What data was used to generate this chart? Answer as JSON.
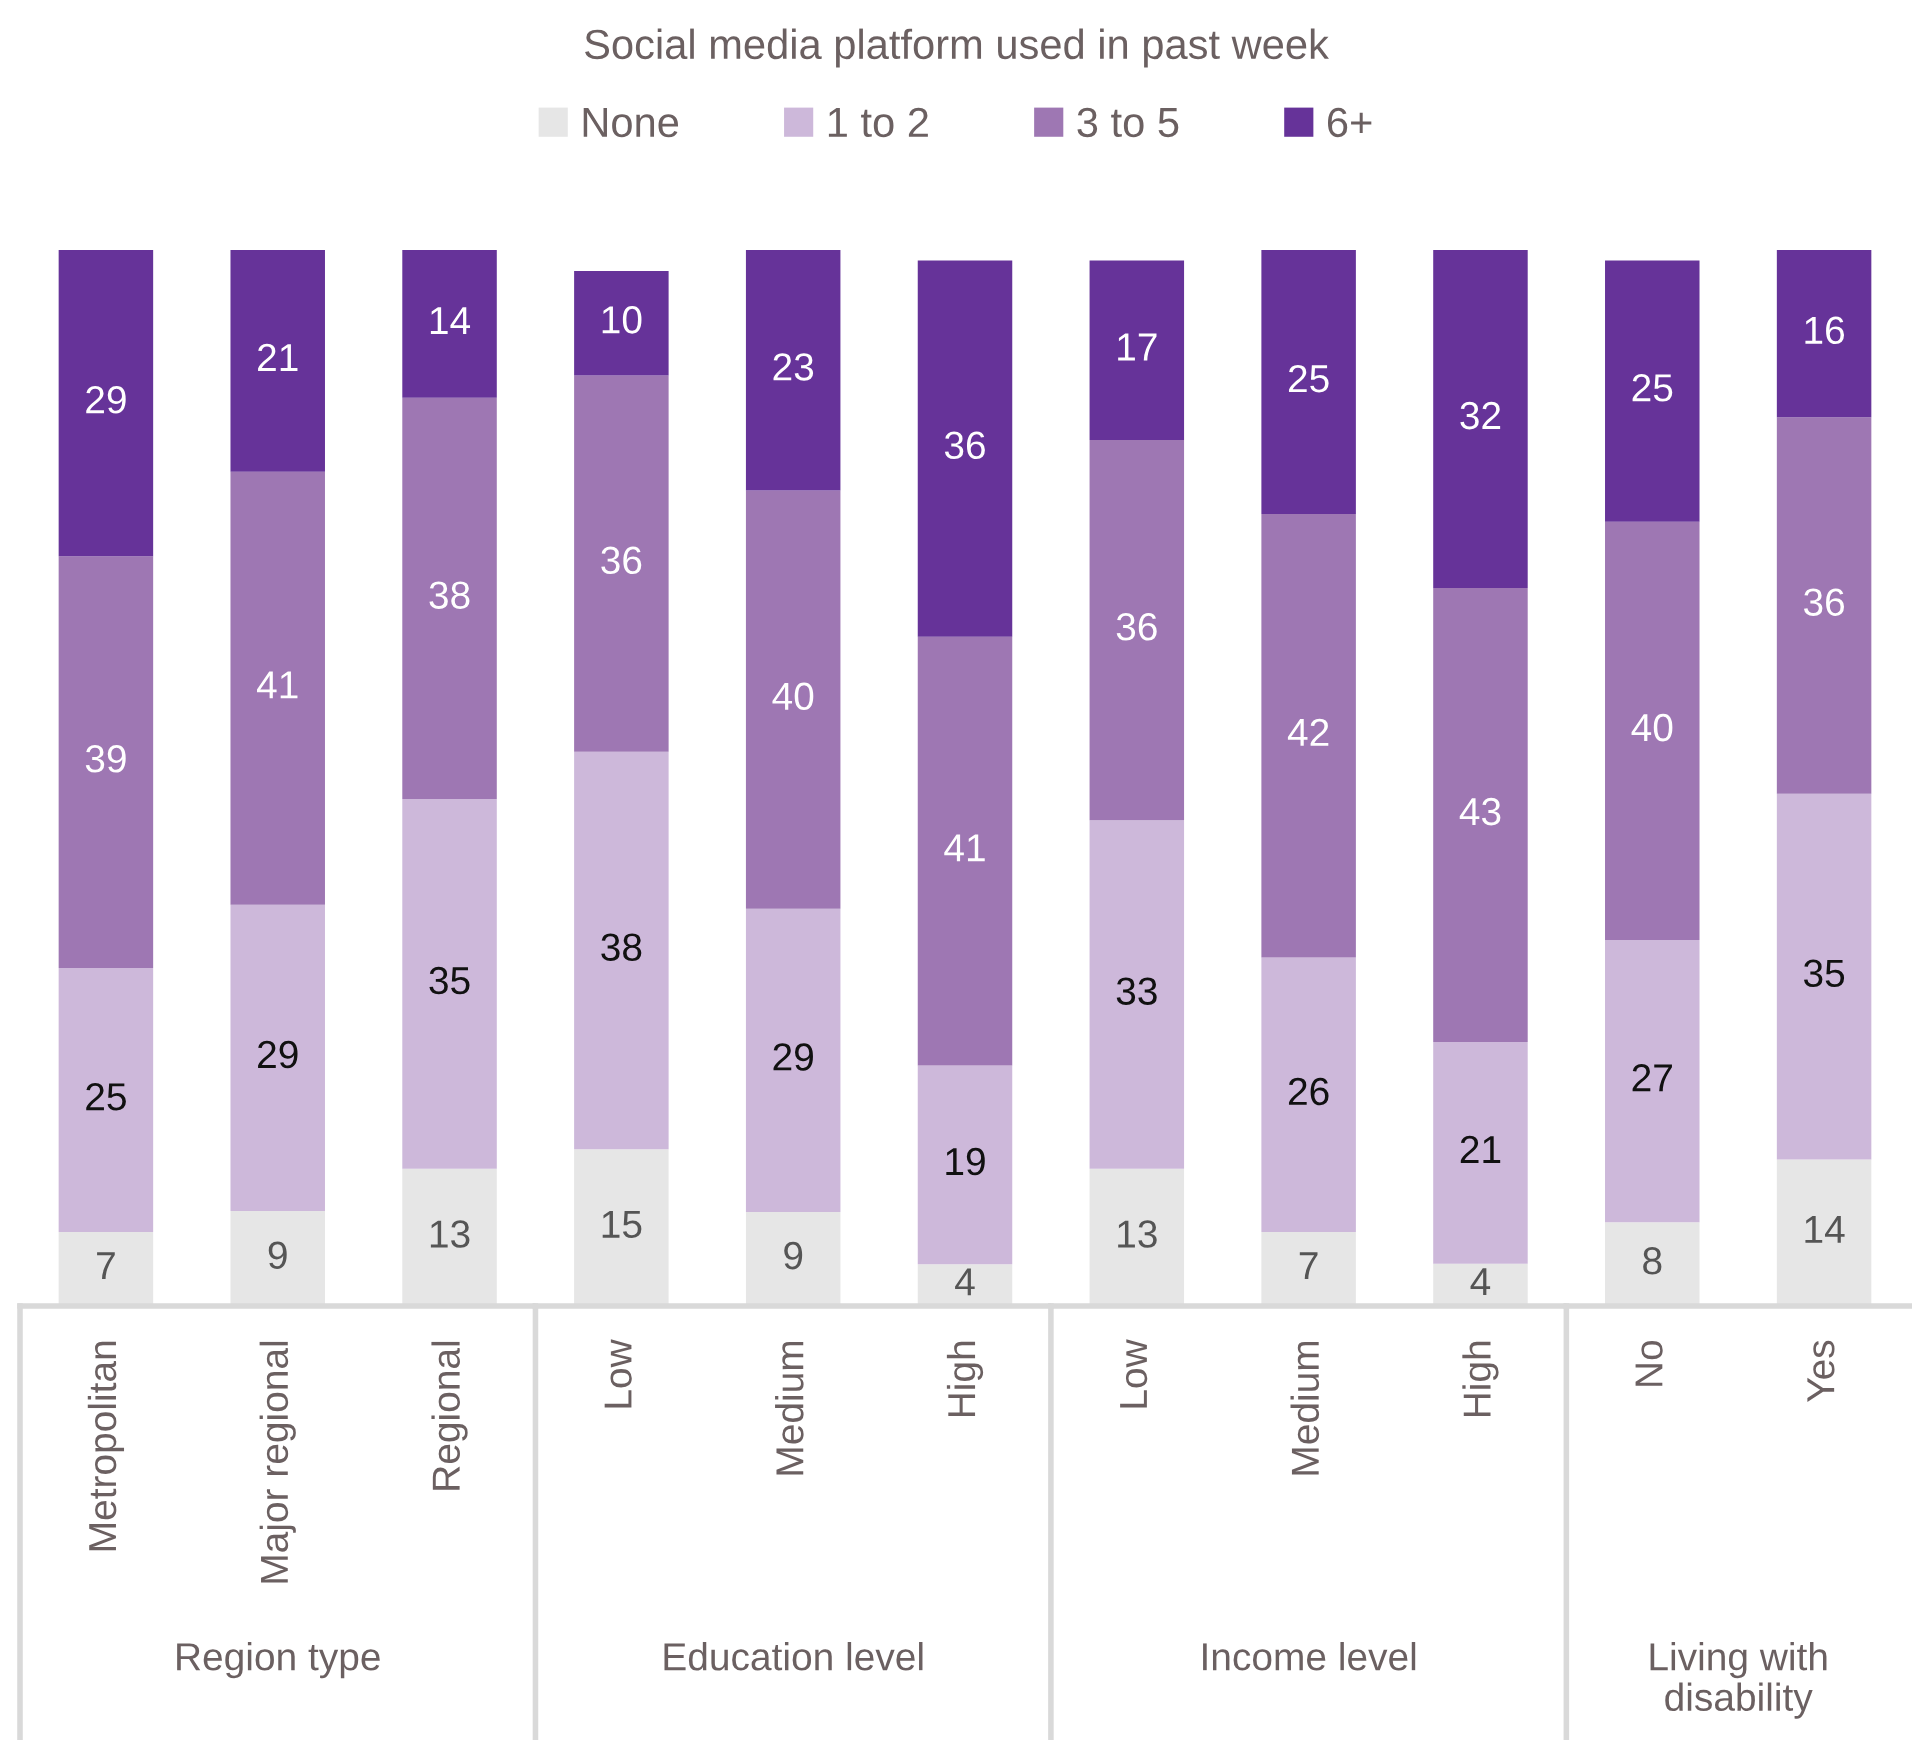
{
  "chart_data": [
    {
      "type": "bar",
      "stacked": true,
      "data_labels": true,
      "legend": "top",
      "grid": false,
      "xlabel": "Region type",
      "categories": [
        "Metropolitan",
        "Major regional",
        "Regional"
      ],
      "series": [
        {
          "name": "None",
          "color": "#e6e6e6",
          "values": [
            7,
            9,
            13
          ]
        },
        {
          "name": "1 to 2",
          "color": "#cdb8da",
          "values": [
            25,
            29,
            35
          ]
        },
        {
          "name": "3 to 5",
          "color": "#9e77b3",
          "values": [
            39,
            41,
            38
          ]
        },
        {
          "name": "6+",
          "color": "#663399",
          "values": [
            29,
            21,
            14
          ]
        }
      ]
    },
    {
      "type": "bar",
      "stacked": true,
      "data_labels": true,
      "grid": false,
      "xlabel": "Education level",
      "title": "Social media platform used in past week",
      "categories": [
        "Low",
        "Medium",
        "High"
      ],
      "series": [
        {
          "color": "#e6e6e6",
          "values": [
            15,
            9,
            4
          ]
        },
        {
          "color": "#cdb8da",
          "values": [
            38,
            29,
            19
          ]
        },
        {
          "color": "#9e77b3",
          "values": [
            36,
            40,
            41
          ]
        },
        {
          "color": "#663399",
          "values": [
            10,
            23,
            36
          ]
        }
      ]
    },
    {
      "type": "bar",
      "stacked": true,
      "data_labels": true,
      "grid": false,
      "xlabel": "Income level",
      "categories": [
        "Low",
        "Medium",
        "High"
      ],
      "series": [
        {
          "color": "#e6e6e6",
          "values": [
            13,
            7,
            4
          ]
        },
        {
          "color": "#cdb8da",
          "values": [
            33,
            26,
            21
          ]
        },
        {
          "color": "#9e77b3",
          "values": [
            36,
            42,
            43
          ]
        },
        {
          "color": "#663399",
          "values": [
            17,
            25,
            32
          ]
        }
      ]
    },
    {
      "type": "bar",
      "stacked": true,
      "data_labels": true,
      "grid": false,
      "xlabel": "Living with\ndisability",
      "categories": [
        "No",
        "Yes"
      ],
      "series": [
        {
          "color": "#e6e6e6",
          "values": [
            8,
            14
          ]
        },
        {
          "color": "#cdb8da",
          "values": [
            27,
            35
          ]
        },
        {
          "color": "#9e77b3",
          "values": [
            40,
            36
          ]
        },
        {
          "color": "#663399",
          "values": [
            25,
            16
          ]
        }
      ]
    }
  ]
}
